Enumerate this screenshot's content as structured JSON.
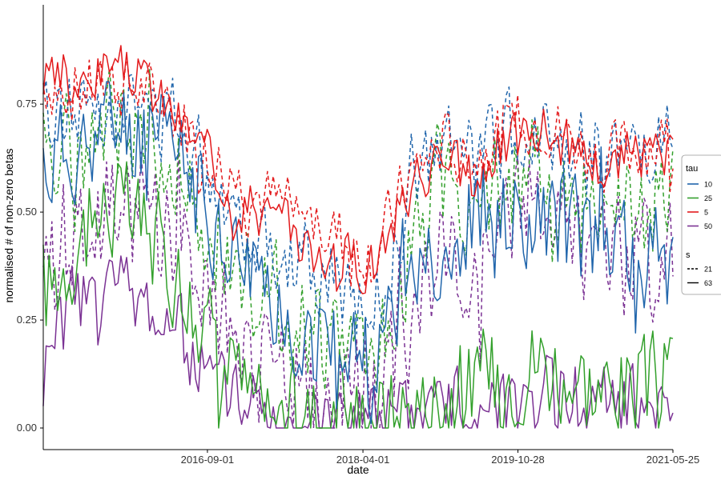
{
  "chart_data": {
    "type": "line",
    "title": "",
    "xlabel": "date",
    "ylabel": "normalised # of non-zero betas",
    "x_ticks": [
      "2016-09-01",
      "2018-04-01",
      "2019-10-28",
      "2021-05-25"
    ],
    "x_range": [
      "2015-01-01",
      "2021-05-25"
    ],
    "y_ticks": [
      "0.00",
      "0.25",
      "0.50",
      "0.75"
    ],
    "ylim": [
      -0.05,
      0.98
    ],
    "grid": false,
    "legend_placement": "right",
    "legend": {
      "tau_title": "tau",
      "tau_entries": [
        {
          "label": "10",
          "color": "#2166ac"
        },
        {
          "label": "25",
          "color": "#33a02c"
        },
        {
          "label": "5",
          "color": "#e31a1c"
        },
        {
          "label": "50",
          "color": "#7b3294"
        }
      ],
      "s_title": "s",
      "s_entries": [
        {
          "label": "21",
          "linetype": "dashed"
        },
        {
          "label": "63",
          "linetype": "solid"
        }
      ]
    },
    "series_shape": {
      "5-63": {
        "base": [
          0.8,
          0.78,
          0.84,
          0.8,
          0.72,
          0.62,
          0.52,
          0.48,
          0.42,
          0.4,
          0.38,
          0.55,
          0.62,
          0.58,
          0.66,
          0.7,
          0.64,
          0.6,
          0.63,
          0.62
        ],
        "amp": 0.08,
        "seed": 3
      },
      "5-21": {
        "base": [
          0.8,
          0.78,
          0.8,
          0.78,
          0.72,
          0.64,
          0.56,
          0.52,
          0.48,
          0.44,
          0.4,
          0.58,
          0.66,
          0.62,
          0.7,
          0.72,
          0.66,
          0.62,
          0.66,
          0.66
        ],
        "amp": 0.1,
        "seed": 7
      },
      "10-63": {
        "base": [
          0.6,
          0.66,
          0.7,
          0.68,
          0.62,
          0.5,
          0.38,
          0.3,
          0.22,
          0.16,
          0.14,
          0.32,
          0.46,
          0.44,
          0.48,
          0.5,
          0.46,
          0.42,
          0.38,
          0.4
        ],
        "amp": 0.16,
        "seed": 11
      },
      "10-21": {
        "base": [
          0.72,
          0.74,
          0.76,
          0.74,
          0.7,
          0.6,
          0.48,
          0.42,
          0.38,
          0.32,
          0.28,
          0.52,
          0.66,
          0.62,
          0.68,
          0.7,
          0.64,
          0.62,
          0.64,
          0.66
        ],
        "amp": 0.12,
        "seed": 13
      },
      "25-63": {
        "base": [
          0.3,
          0.44,
          0.52,
          0.46,
          0.36,
          0.22,
          0.08,
          0.03,
          0.02,
          0.02,
          0.02,
          0.04,
          0.08,
          0.1,
          0.14,
          0.16,
          0.12,
          0.08,
          0.08,
          0.1
        ],
        "amp": 0.16,
        "seed": 17
      },
      "25-21": {
        "base": [
          0.58,
          0.66,
          0.7,
          0.66,
          0.6,
          0.46,
          0.34,
          0.28,
          0.24,
          0.2,
          0.18,
          0.4,
          0.56,
          0.52,
          0.58,
          0.6,
          0.54,
          0.5,
          0.5,
          0.52
        ],
        "amp": 0.16,
        "seed": 19
      },
      "50-63": {
        "base": [
          0.14,
          0.3,
          0.34,
          0.3,
          0.22,
          0.12,
          0.04,
          0.01,
          0.01,
          0.01,
          0.01,
          0.02,
          0.04,
          0.06,
          0.07,
          0.08,
          0.07,
          0.06,
          0.05,
          0.05
        ],
        "amp": 0.12,
        "seed": 23
      },
      "50-21": {
        "base": [
          0.42,
          0.48,
          0.52,
          0.46,
          0.4,
          0.3,
          0.2,
          0.12,
          0.1,
          0.08,
          0.06,
          0.22,
          0.4,
          0.38,
          0.46,
          0.5,
          0.44,
          0.4,
          0.38,
          0.4
        ],
        "amp": 0.18,
        "seed": 29
      }
    },
    "n_points": 220
  }
}
